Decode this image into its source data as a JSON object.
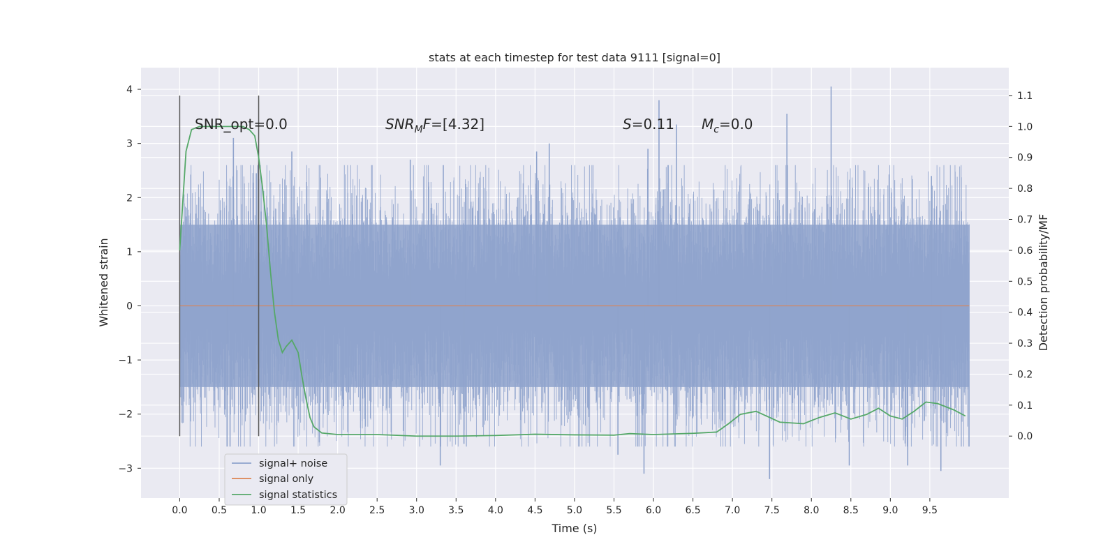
{
  "chart_data": {
    "type": "line",
    "title": "stats at each timestep for test data 9111 [signal=0]",
    "xlabel": "Time (s)",
    "ylabel": "Whitened strain",
    "y2label": "Detection probability/MF",
    "xlim": [
      -0.49,
      10.5
    ],
    "ylim": [
      -3.55,
      4.4
    ],
    "y2lim": [
      -0.2,
      1.19
    ],
    "x_ticks": [
      0.0,
      0.5,
      1.0,
      1.5,
      2.0,
      2.5,
      3.0,
      3.5,
      4.0,
      4.5,
      5.0,
      5.5,
      6.0,
      6.5,
      7.0,
      7.5,
      8.0,
      8.5,
      9.0,
      9.5
    ],
    "x_tick_labels": [
      "0.0",
      "0.5",
      "1.0",
      "1.5",
      "2.0",
      "2.5",
      "3.0",
      "3.5",
      "4.0",
      "4.5",
      "5.0",
      "5.5",
      "6.0",
      "6.5",
      "7.0",
      "7.5",
      "8.0",
      "8.5",
      "9.0",
      "9.5"
    ],
    "y_ticks": [
      -3,
      -2,
      -1,
      0,
      1,
      2,
      3,
      4
    ],
    "y_tick_labels": [
      "−3",
      "−2",
      "−1",
      "0",
      "1",
      "2",
      "3",
      "4"
    ],
    "y2_ticks": [
      0.0,
      0.1,
      0.2,
      0.3,
      0.4,
      0.5,
      0.6,
      0.7,
      0.8,
      0.9,
      1.0,
      1.1
    ],
    "y2_tick_labels": [
      "0.0",
      "0.1",
      "0.2",
      "0.3",
      "0.4",
      "0.5",
      "0.6",
      "0.7",
      "0.8",
      "0.9",
      "1.0",
      "1.1"
    ],
    "grid": true,
    "legend_position": "bottom-left",
    "legend": [
      "signal+ noise",
      "signal only",
      "signal statistics"
    ],
    "colors": {
      "noise": "#8fa3cc",
      "signal": "#dd8452",
      "stats": "#55a868",
      "plot_bg": "#eaeaf2",
      "grid": "#ffffff",
      "marker": "#555555"
    },
    "annotations": [
      {
        "text": "SNR_opt=0.0"
      },
      {
        "text": "SNR_MF=[4.32]"
      },
      {
        "text": "S=0.11"
      },
      {
        "text": "M_c=0.0"
      }
    ],
    "vertical_markers_x": [
      0.0,
      1.0
    ],
    "series": [
      {
        "name": "signal+ noise",
        "axis": "left",
        "x_range": [
          0.0,
          10.0
        ],
        "typical_envelope": [
          -1.5,
          1.5
        ],
        "notable_peaks": [
          {
            "x": 0.68,
            "y": 3.1
          },
          {
            "x": 0.97,
            "y": 2.45
          },
          {
            "x": 1.42,
            "y": 2.85
          },
          {
            "x": 2.92,
            "y": 2.7
          },
          {
            "x": 4.52,
            "y": 2.85
          },
          {
            "x": 4.68,
            "y": 3.0
          },
          {
            "x": 5.93,
            "y": 2.9
          },
          {
            "x": 6.07,
            "y": 3.8
          },
          {
            "x": 6.29,
            "y": 3.35
          },
          {
            "x": 7.69,
            "y": 3.55
          },
          {
            "x": 8.25,
            "y": 4.05
          },
          {
            "x": 9.52,
            "y": 2.4
          },
          {
            "x": 0.08,
            "y": 1.65
          },
          {
            "x": 3.62,
            "y": 2.25
          }
        ],
        "notable_troughs": [
          {
            "x": 0.6,
            "y": -2.6
          },
          {
            "x": 3.3,
            "y": -2.95
          },
          {
            "x": 3.6,
            "y": -2.55
          },
          {
            "x": 5.55,
            "y": -2.75
          },
          {
            "x": 5.88,
            "y": -3.1
          },
          {
            "x": 7.47,
            "y": -3.2
          },
          {
            "x": 8.48,
            "y": -2.95
          },
          {
            "x": 9.22,
            "y": -2.95
          },
          {
            "x": 9.64,
            "y": -3.05
          }
        ]
      },
      {
        "name": "signal only",
        "axis": "left",
        "x": [
          0.0,
          10.0
        ],
        "y": [
          0.0,
          0.0
        ]
      },
      {
        "name": "signal statistics",
        "axis": "right",
        "x": [
          0.0,
          0.08,
          0.15,
          0.25,
          0.4,
          0.6,
          0.8,
          0.88,
          0.95,
          1.0,
          1.05,
          1.1,
          1.15,
          1.2,
          1.25,
          1.3,
          1.35,
          1.42,
          1.5,
          1.55,
          1.6,
          1.65,
          1.7,
          1.8,
          2.0,
          2.5,
          3.0,
          3.5,
          4.0,
          4.5,
          5.0,
          5.5,
          5.7,
          6.0,
          6.5,
          6.8,
          6.95,
          7.1,
          7.3,
          7.6,
          7.9,
          8.1,
          8.3,
          8.5,
          8.7,
          8.85,
          9.0,
          9.15,
          9.3,
          9.45,
          9.6,
          9.8,
          9.95
        ],
        "y": [
          0.6,
          0.92,
          0.99,
          1.0,
          1.0,
          1.0,
          1.0,
          0.99,
          0.97,
          0.9,
          0.8,
          0.68,
          0.53,
          0.4,
          0.31,
          0.27,
          0.29,
          0.31,
          0.27,
          0.19,
          0.12,
          0.06,
          0.03,
          0.01,
          0.005,
          0.005,
          0.0,
          0.0,
          0.002,
          0.006,
          0.004,
          0.003,
          0.008,
          0.005,
          0.009,
          0.013,
          0.04,
          0.07,
          0.08,
          0.045,
          0.04,
          0.06,
          0.075,
          0.055,
          0.07,
          0.09,
          0.065,
          0.055,
          0.08,
          0.11,
          0.105,
          0.085,
          0.065
        ]
      }
    ]
  }
}
